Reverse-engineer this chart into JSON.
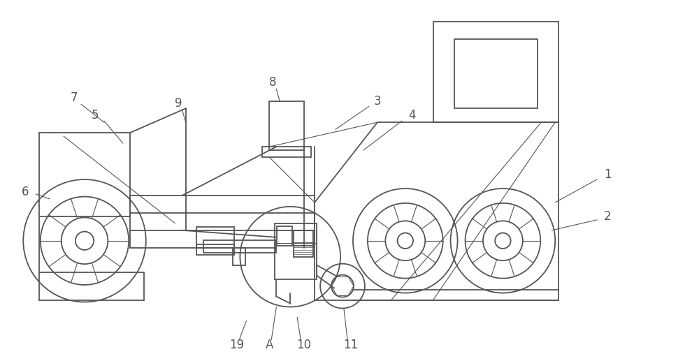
{
  "bg_color": "#ffffff",
  "line_color": "#555555",
  "lw": 1.3,
  "lw_thin": 0.8,
  "fig_width": 10.0,
  "fig_height": 5.17,
  "dpi": 100
}
